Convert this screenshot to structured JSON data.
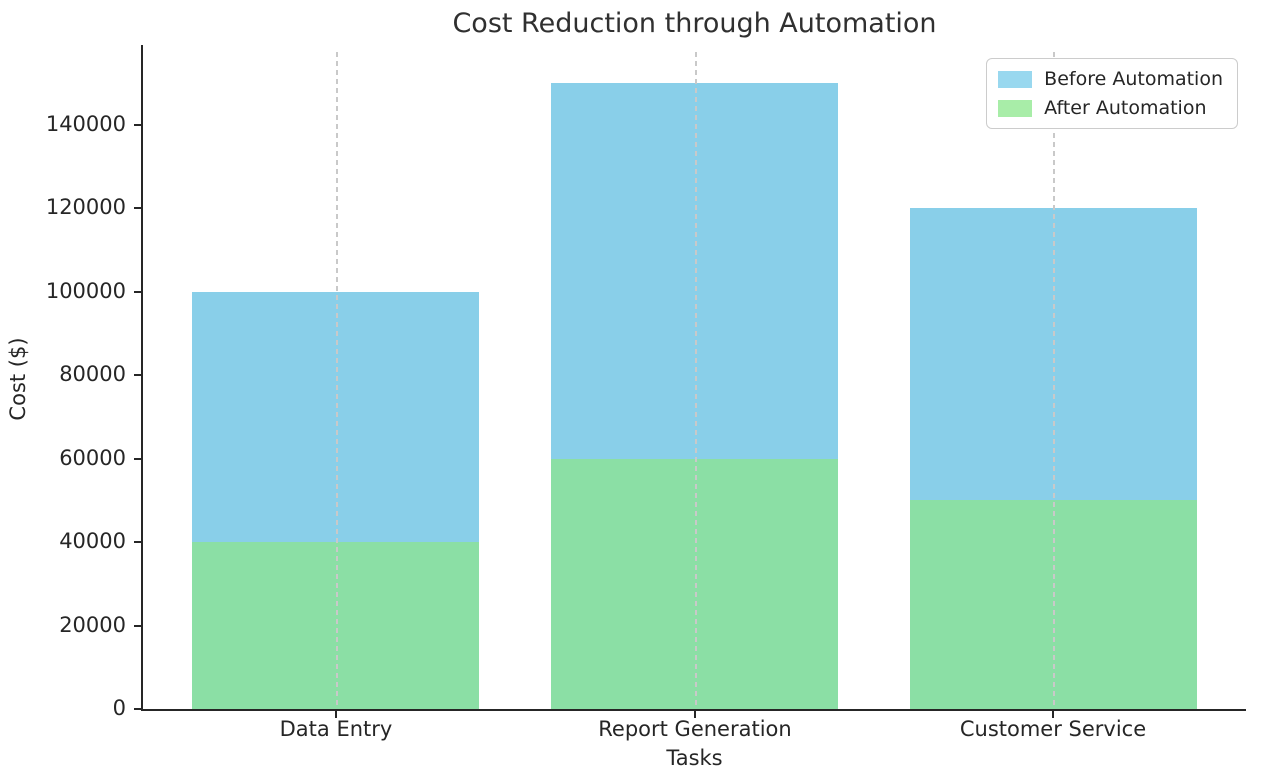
{
  "title": "Cost Reduction through Automation",
  "chart_data": {
    "type": "bar",
    "mode": "overlay",
    "title": "Cost Reduction through Automation",
    "xlabel": "Tasks",
    "ylabel": "Cost ($)",
    "categories": [
      "Data Entry",
      "Report Generation",
      "Customer Service"
    ],
    "series": [
      {
        "name": "Before Automation",
        "values": [
          100000,
          150000,
          120000
        ],
        "color": "#89CFE9",
        "legend_color": "#99D8EF"
      },
      {
        "name": "After Automation",
        "values": [
          40000,
          60000,
          50000
        ],
        "color": "#8BDFA5",
        "legend_color": "#A8EDA8"
      }
    ],
    "ylim": [
      0,
      157500
    ],
    "yticks": [
      0,
      20000,
      40000,
      60000,
      80000,
      100000,
      120000,
      140000
    ],
    "ytick_labels": [
      "0",
      "20000",
      "40000",
      "60000",
      "80000",
      "100000",
      "120000",
      "140000"
    ],
    "grid": "vertical-dashed",
    "grid_color": "#c9c9c9",
    "legend_position": "upper-right",
    "legend_entries": [
      "Before Automation",
      "After Automation"
    ]
  }
}
